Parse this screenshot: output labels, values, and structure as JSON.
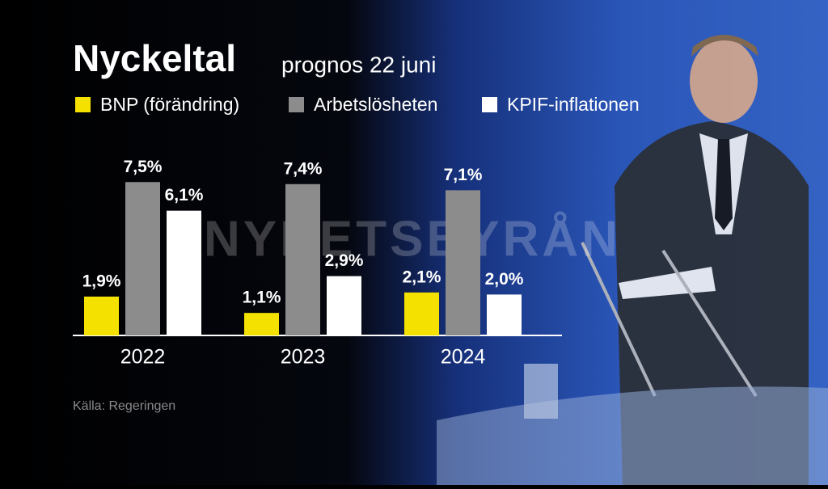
{
  "chart_data": {
    "type": "bar",
    "title": "Nyckeltal",
    "subtitle": "prognos 22 juni",
    "source": "Källa: Regeringen",
    "watermark": "NYHETSBYRÅN",
    "categories": [
      "2022",
      "2023",
      "2024"
    ],
    "series": [
      {
        "name": "BNP (förändring)",
        "color": "#f5e100",
        "values": [
          1.9,
          1.1,
          2.1
        ],
        "value_labels": [
          "1,9%",
          "1,1%",
          "2,1%"
        ]
      },
      {
        "name": "Arbetslösheten",
        "color": "#8c8c8c",
        "values": [
          7.5,
          7.4,
          7.1
        ],
        "value_labels": [
          "7,5%",
          "7,4%",
          "7,1%"
        ]
      },
      {
        "name": "KPIF-inflationen",
        "color": "#ffffff",
        "values": [
          6.1,
          2.9,
          2.0
        ],
        "value_labels": [
          "6,1%",
          "2,9%",
          "2,0%"
        ]
      }
    ]
  }
}
